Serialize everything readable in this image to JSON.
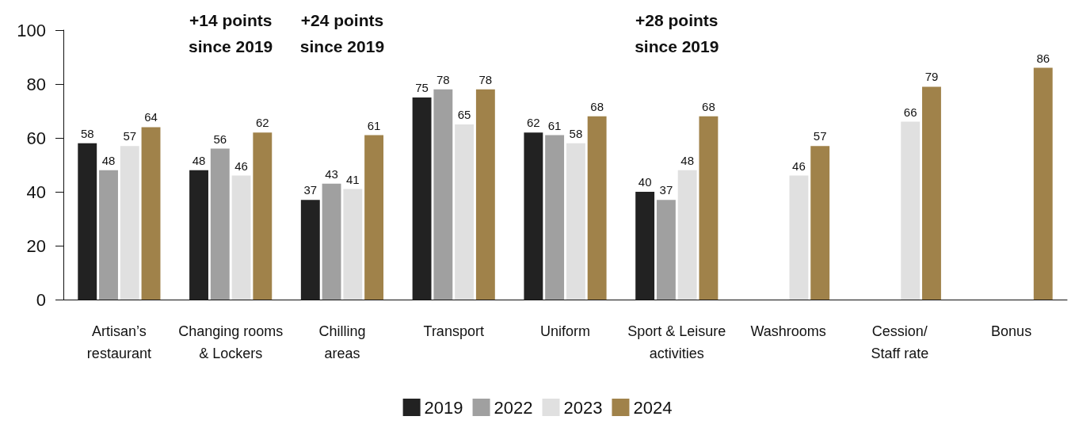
{
  "chart_data": {
    "type": "bar",
    "categories": [
      "Artisan’s\nrestaurant",
      "Changing rooms\n& Lockers",
      "Chilling\nareas",
      "Transport",
      "Uniform",
      "Sport & Leisure\nactivities",
      "Washrooms",
      "Cession/\nStaff rate",
      "Bonus"
    ],
    "series": [
      {
        "name": "2019",
        "color": "#222222",
        "values": [
          58,
          48,
          37,
          75,
          62,
          40,
          null,
          null,
          null
        ]
      },
      {
        "name": "2022",
        "color": "#a0a0a0",
        "values": [
          48,
          56,
          43,
          78,
          61,
          37,
          null,
          null,
          null
        ]
      },
      {
        "name": "2023",
        "color": "#e0e0e0",
        "values": [
          57,
          46,
          41,
          65,
          58,
          48,
          46,
          66,
          null
        ]
      },
      {
        "name": "2024",
        "color": "#a0824a",
        "values": [
          64,
          62,
          61,
          78,
          68,
          68,
          57,
          79,
          86
        ]
      }
    ],
    "ylim": [
      0,
      100
    ],
    "yticks": [
      0,
      20,
      40,
      60,
      80,
      100
    ],
    "grid": false,
    "legend": "bottom",
    "data_labels": true,
    "annotations": [
      "+14 points\nsince 2019",
      "+24 points\nsince 2019",
      "+28 points\nsince 2019"
    ]
  }
}
